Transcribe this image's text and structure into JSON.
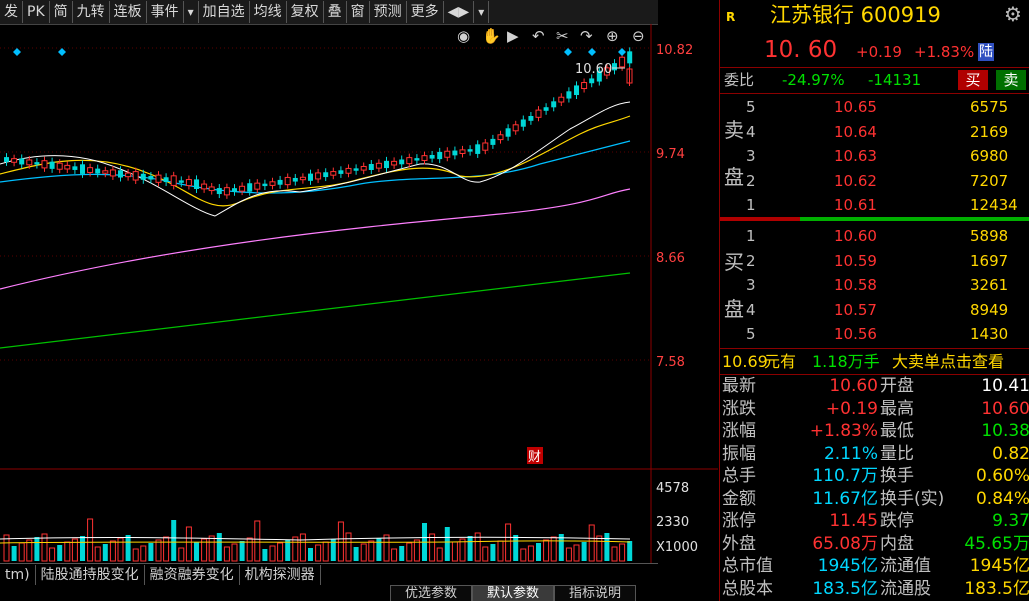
{
  "toolbar": {
    "items": [
      "发",
      "PK",
      "简",
      "九转",
      "连板",
      "事件",
      "▾",
      "加自选",
      "均线",
      "复权",
      "叠",
      "窗",
      "预测",
      "更多",
      "◀▶",
      "▾"
    ]
  },
  "chart": {
    "price_labels": [
      "10.82",
      "9.74",
      "8.66",
      "7.58"
    ],
    "volume_labels": [
      "4578",
      "2330",
      "X1000"
    ],
    "last_price_tag": "10.60",
    "event_marker": "财",
    "colors": {
      "up": "#ff3232",
      "down": "#00d7d7",
      "ma5": "#ffffff",
      "ma10": "#ffd700",
      "ma20": "#00bfff",
      "ma60": "#ff80ff",
      "ma120": "#00c000",
      "axis": "#8b0000"
    },
    "icons": [
      "eye-icon",
      "hand-icon",
      "play-icon",
      "undo-icon",
      "cut-icon",
      "redo-icon",
      "zoom-in-icon",
      "zoom-out-icon"
    ]
  },
  "bottom_tabs": [
    "tm)",
    "陆股通持股变化",
    "融资融券变化",
    "机构探测器"
  ],
  "bottom_tabs2": [
    "优选参数",
    "默认参数",
    "指标说明"
  ],
  "stock": {
    "market_tag": "R",
    "name": "江苏银行 600919",
    "price": "10. 60",
    "change": "+0.19",
    "change_pct": "+1.83%",
    "badge": "陆"
  },
  "weibi": {
    "label": "委比",
    "ratio": "-24.97%",
    "diff": "-14131",
    "buy": "买",
    "sell": "卖"
  },
  "sell_side_label": [
    "卖",
    "盘"
  ],
  "buy_side_label": [
    "买",
    "盘"
  ],
  "sell_orders": [
    {
      "level": "5",
      "price": "10.65",
      "vol": "6575"
    },
    {
      "level": "4",
      "price": "10.64",
      "vol": "2169"
    },
    {
      "level": "3",
      "price": "10.63",
      "vol": "6980"
    },
    {
      "level": "2",
      "price": "10.62",
      "vol": "7207"
    },
    {
      "level": "1",
      "price": "10.61",
      "vol": "12434"
    }
  ],
  "buy_orders": [
    {
      "level": "1",
      "price": "10.60",
      "vol": "5898"
    },
    {
      "level": "2",
      "price": "10.59",
      "vol": "1697"
    },
    {
      "level": "3",
      "price": "10.58",
      "vol": "3261"
    },
    {
      "level": "4",
      "price": "10.57",
      "vol": "8949"
    },
    {
      "level": "5",
      "price": "10.56",
      "vol": "1430"
    }
  ],
  "notice": {
    "price": "10.69",
    "t1": "元有",
    "amount": "1.18万手",
    "t2": "大卖单点击查看"
  },
  "quote_rows": [
    {
      "l1": "最新",
      "v1": "10.60",
      "c1": "#ff3232",
      "l2": "开盘",
      "v2": "10.41",
      "c2": "#ffffff"
    },
    {
      "l1": "涨跌",
      "v1": "+0.19",
      "c1": "#ff3232",
      "l2": "最高",
      "v2": "10.60",
      "c2": "#ff3232"
    },
    {
      "l1": "涨幅",
      "v1": "+1.83%",
      "c1": "#ff3232",
      "l2": "最低",
      "v2": "10.38",
      "c2": "#00e000"
    },
    {
      "l1": "振幅",
      "v1": "2.11%",
      "c1": "#00d7ff",
      "l2": "量比",
      "v2": "0.82",
      "c2": "#ffd700"
    },
    {
      "l1": "总手",
      "v1": "110.7万",
      "c1": "#00d7ff",
      "l2": "换手",
      "v2": "0.60%",
      "c2": "#ffd700"
    },
    {
      "l1": "金额",
      "v1": "11.67亿",
      "c1": "#00d7ff",
      "l2": "换手(实)",
      "v2": "0.84%",
      "c2": "#ffd700"
    },
    {
      "l1": "涨停",
      "v1": "11.45",
      "c1": "#ff3232",
      "l2": "跌停",
      "v2": "9.37",
      "c2": "#00e000"
    },
    {
      "l1": "外盘",
      "v1": "65.08万",
      "c1": "#ff3232",
      "l2": "内盘",
      "v2": "45.65万",
      "c2": "#00e000"
    },
    {
      "l1": "总市值",
      "v1": "1945亿",
      "c1": "#00d7ff",
      "l2": "流通值",
      "v2": "1945亿",
      "c2": "#ffd700"
    },
    {
      "l1": "总股本",
      "v1": "183.5亿",
      "c1": "#00d7ff",
      "l2": "流通股",
      "v2": "183.5亿",
      "c2": "#ffd700"
    }
  ]
}
